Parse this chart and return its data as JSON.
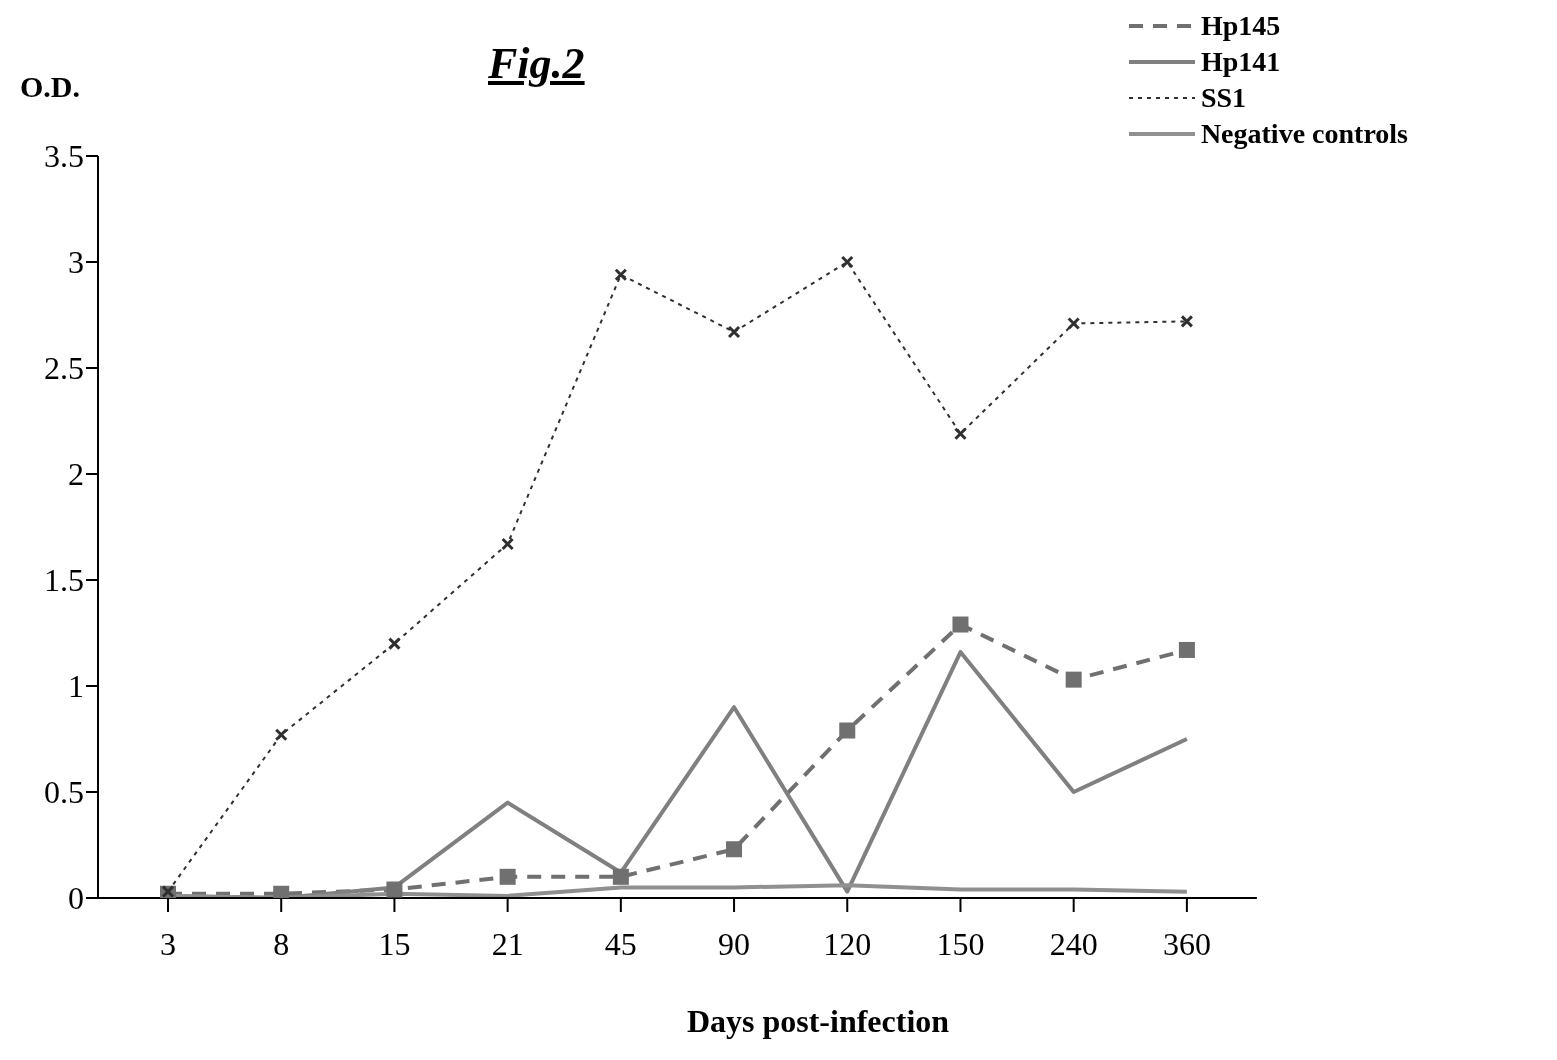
{
  "chart_data": {
    "type": "line",
    "title": "Fig.2",
    "ylabel": "O.D.",
    "xlabel": "Days post-infection",
    "categories": [
      "3",
      "8",
      "15",
      "21",
      "45",
      "90",
      "120",
      "150",
      "240",
      "360"
    ],
    "series": [
      {
        "name": "Hp145",
        "color": "#707070",
        "line_style": "dashed",
        "marker": "square",
        "values": [
          0.02,
          0.02,
          0.04,
          0.1,
          0.1,
          0.23,
          0.79,
          1.29,
          1.03,
          1.17
        ]
      },
      {
        "name": "Hp141",
        "color": "#808080",
        "line_style": "solid",
        "marker": "none",
        "values": [
          0.01,
          0,
          0.05,
          0.45,
          0.12,
          0.9,
          0.03,
          1.16,
          0.5,
          0.75
        ]
      },
      {
        "name": "SS1",
        "color": "#303030",
        "line_style": "dotted",
        "marker": "cross",
        "values": [
          0.03,
          0.77,
          1.2,
          1.67,
          2.94,
          2.67,
          3.0,
          2.19,
          2.71,
          2.72
        ]
      },
      {
        "name": "Negative controls",
        "color": "#909090",
        "line_style": "solid",
        "marker": "none",
        "values": [
          0.01,
          0,
          0.02,
          0.01,
          0.05,
          0.05,
          0.06,
          0.04,
          0.04,
          0.03
        ]
      }
    ],
    "ylim": [
      0,
      3.5
    ],
    "yticks": [
      0,
      0.5,
      1,
      1.5,
      2,
      2.5,
      3,
      3.5
    ],
    "grid": false,
    "legend": "top right"
  }
}
